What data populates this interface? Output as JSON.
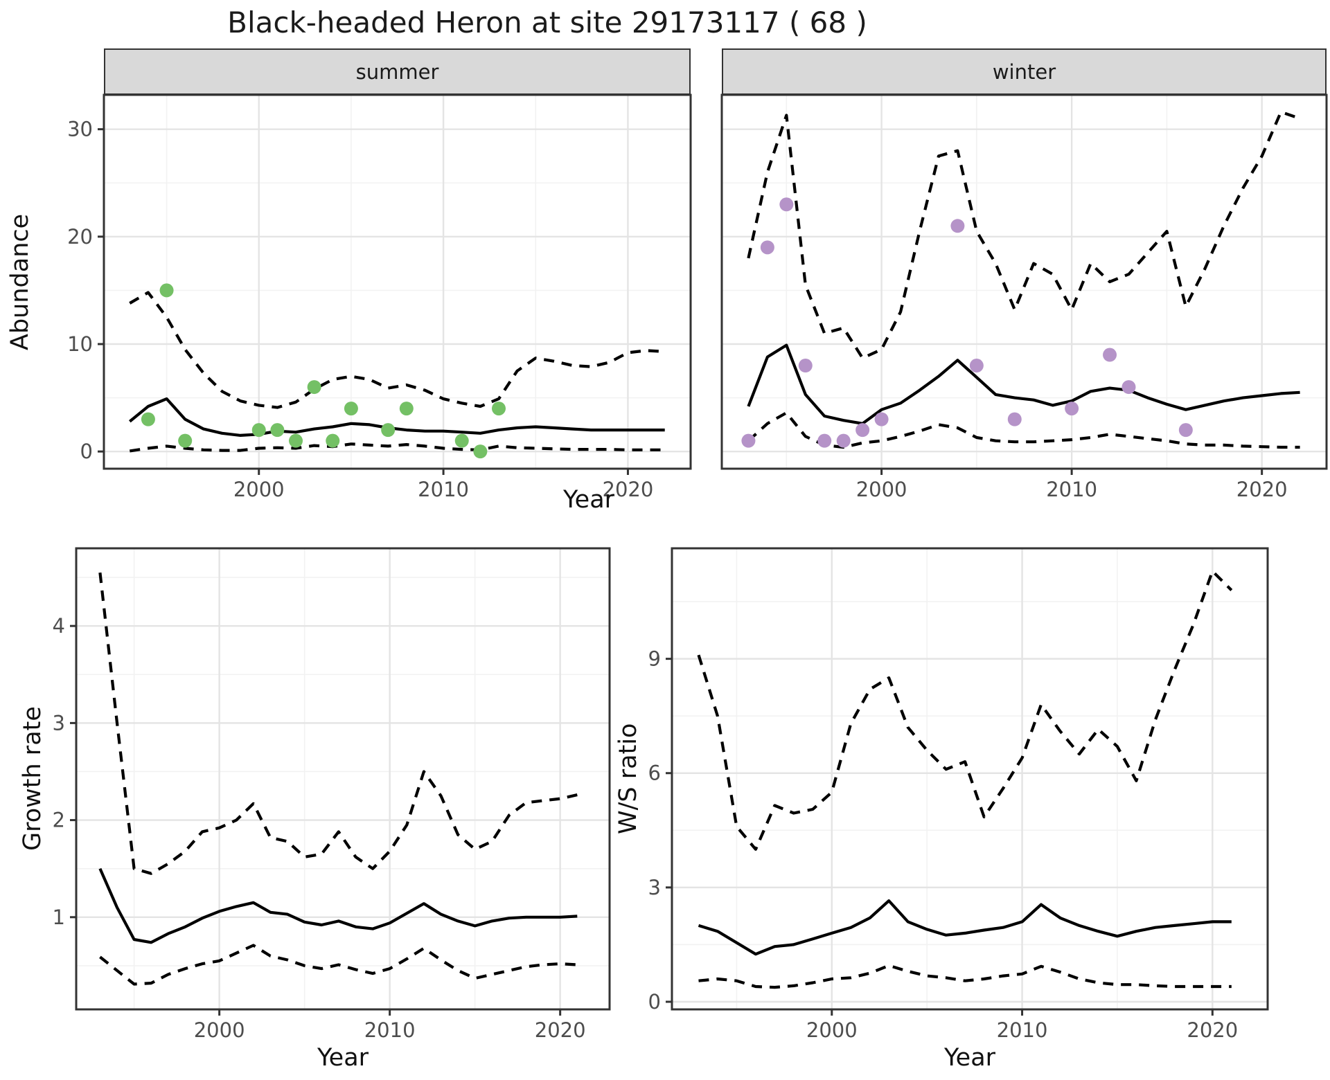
{
  "title": "Black-headed Heron at site 29173117 ( 68 )",
  "colors": {
    "summer_points": "#74c065",
    "winter_points": "#b593c8",
    "line": "#000000",
    "grid_major": "#e4e4e4",
    "grid_minor": "#f2f2f2",
    "strip_bg": "#d9d9d9",
    "panel_border": "#333333",
    "axis_text": "#4d4d4d"
  },
  "chart_data": [
    {
      "type": "line",
      "facet": "summer",
      "xlabel": "Year",
      "ylabel": "Abundance",
      "xlim": [
        1991.6,
        2023.4
      ],
      "ylim": [
        -1.6,
        33.2
      ],
      "xticks": [
        2000,
        2010,
        2020
      ],
      "xminor": [
        1995,
        2005,
        2015
      ],
      "yticks": [
        0,
        10,
        20,
        30
      ],
      "yminor": [
        5,
        15,
        25
      ],
      "grid": "on",
      "years": [
        1993,
        1994,
        1995,
        1996,
        1997,
        1998,
        1999,
        2000,
        2001,
        2002,
        2003,
        2004,
        2005,
        2006,
        2007,
        2008,
        2009,
        2010,
        2011,
        2012,
        2013,
        2014,
        2015,
        2016,
        2017,
        2018,
        2019,
        2020,
        2021,
        2022
      ],
      "series": [
        {
          "name": "median",
          "style": "solid",
          "values": [
            2.8,
            4.2,
            4.9,
            3.0,
            2.1,
            1.7,
            1.5,
            1.6,
            1.9,
            1.8,
            2.1,
            2.3,
            2.6,
            2.5,
            2.2,
            2.0,
            1.9,
            1.9,
            1.8,
            1.7,
            2.0,
            2.2,
            2.3,
            2.2,
            2.1,
            2.0,
            2.0,
            2.0,
            2.0,
            2.0
          ]
        },
        {
          "name": "upper CI",
          "style": "dashed",
          "values": [
            13.8,
            14.8,
            12.5,
            9.5,
            7.3,
            5.6,
            4.7,
            4.3,
            4.1,
            4.6,
            5.8,
            6.7,
            7.0,
            6.7,
            5.9,
            6.2,
            5.7,
            4.9,
            4.5,
            4.2,
            4.9,
            7.5,
            8.7,
            8.4,
            8.0,
            7.9,
            8.3,
            9.2,
            9.4,
            9.3
          ]
        },
        {
          "name": "lower CI",
          "style": "dashed",
          "values": [
            0.05,
            0.3,
            0.5,
            0.3,
            0.15,
            0.1,
            0.1,
            0.3,
            0.35,
            0.3,
            0.55,
            0.45,
            0.7,
            0.6,
            0.5,
            0.65,
            0.5,
            0.3,
            0.2,
            0.15,
            0.5,
            0.35,
            0.3,
            0.25,
            0.2,
            0.2,
            0.2,
            0.15,
            0.15,
            0.15
          ]
        }
      ],
      "observed_counts": [
        [
          1994,
          3
        ],
        [
          1995,
          15
        ],
        [
          1996,
          1
        ],
        [
          2000,
          2
        ],
        [
          2001,
          2
        ],
        [
          2002,
          1
        ],
        [
          2003,
          6
        ],
        [
          2004,
          1
        ],
        [
          2005,
          4
        ],
        [
          2007,
          2
        ],
        [
          2008,
          4
        ],
        [
          2011,
          1
        ],
        [
          2012,
          0
        ],
        [
          2013,
          4
        ]
      ]
    },
    {
      "type": "line",
      "facet": "winter",
      "xlabel": "Year",
      "ylabel": "Abundance",
      "xlim": [
        1991.6,
        2023.4
      ],
      "ylim": [
        -1.6,
        33.2
      ],
      "xticks": [
        2000,
        2010,
        2020
      ],
      "xminor": [
        1995,
        2005,
        2015
      ],
      "yticks": [
        0,
        10,
        20,
        30
      ],
      "yminor": [
        5,
        15,
        25
      ],
      "grid": "on",
      "years": [
        1993,
        1994,
        1995,
        1996,
        1997,
        1998,
        1999,
        2000,
        2001,
        2002,
        2003,
        2004,
        2005,
        2006,
        2007,
        2008,
        2009,
        2010,
        2011,
        2012,
        2013,
        2014,
        2015,
        2016,
        2017,
        2018,
        2019,
        2020,
        2021,
        2022
      ],
      "series": [
        {
          "name": "median",
          "style": "solid",
          "values": [
            4.2,
            8.8,
            9.9,
            5.3,
            3.3,
            2.9,
            2.6,
            3.9,
            4.5,
            5.7,
            7.0,
            8.5,
            6.9,
            5.3,
            5.0,
            4.8,
            4.3,
            4.7,
            5.6,
            5.9,
            5.7,
            5.0,
            4.4,
            3.9,
            4.3,
            4.7,
            5.0,
            5.2,
            5.4,
            5.5
          ]
        },
        {
          "name": "upper CI",
          "style": "dashed",
          "values": [
            18.0,
            26.0,
            31.3,
            15.5,
            11.0,
            11.5,
            8.7,
            9.5,
            13.0,
            20.5,
            27.5,
            28.0,
            20.5,
            17.5,
            13.2,
            17.5,
            16.5,
            13.2,
            17.5,
            15.8,
            16.5,
            18.5,
            20.5,
            13.5,
            17.0,
            21.0,
            24.5,
            27.5,
            31.6,
            31.0
          ]
        },
        {
          "name": "lower CI",
          "style": "dashed",
          "values": [
            1.0,
            2.6,
            3.6,
            1.4,
            0.6,
            0.4,
            0.8,
            1.0,
            1.4,
            1.9,
            2.5,
            2.2,
            1.3,
            1.0,
            0.9,
            0.9,
            1.0,
            1.1,
            1.3,
            1.6,
            1.4,
            1.2,
            1.0,
            0.7,
            0.6,
            0.6,
            0.5,
            0.45,
            0.4,
            0.4
          ]
        }
      ],
      "observed_counts": [
        [
          1993,
          1
        ],
        [
          1994,
          19
        ],
        [
          1995,
          23
        ],
        [
          1996,
          8
        ],
        [
          1997,
          1
        ],
        [
          1998,
          1
        ],
        [
          1999,
          2
        ],
        [
          2000,
          3
        ],
        [
          2004,
          21
        ],
        [
          2005,
          8
        ],
        [
          2007,
          3
        ],
        [
          2010,
          4
        ],
        [
          2012,
          9
        ],
        [
          2013,
          6
        ],
        [
          2016,
          2
        ]
      ]
    },
    {
      "type": "line",
      "facet": null,
      "xlabel": "Year",
      "ylabel": "Growth rate",
      "xlim": [
        1991.6,
        2022.9
      ],
      "ylim": [
        0.05,
        4.8
      ],
      "xticks": [
        2000,
        2010,
        2020
      ],
      "xminor": [
        1995,
        2005,
        2015
      ],
      "yticks": [
        1,
        2,
        3,
        4
      ],
      "yminor": [
        0.5,
        1.5,
        2.5,
        3.5,
        4.5
      ],
      "grid": "on",
      "years": [
        1993,
        1994,
        1995,
        1996,
        1997,
        1998,
        1999,
        2000,
        2001,
        2002,
        2003,
        2004,
        2005,
        2006,
        2007,
        2008,
        2009,
        2010,
        2011,
        2012,
        2013,
        2014,
        2015,
        2016,
        2017,
        2018,
        2019,
        2020,
        2021
      ],
      "series": [
        {
          "name": "median",
          "style": "solid",
          "values": [
            1.5,
            1.1,
            0.77,
            0.74,
            0.83,
            0.9,
            0.99,
            1.06,
            1.11,
            1.15,
            1.05,
            1.03,
            0.95,
            0.92,
            0.96,
            0.9,
            0.88,
            0.94,
            1.04,
            1.14,
            1.03,
            0.96,
            0.91,
            0.96,
            0.99,
            1.0,
            1.0,
            1.0,
            1.01
          ]
        },
        {
          "name": "upper CI",
          "style": "dashed",
          "values": [
            4.55,
            3.0,
            1.5,
            1.45,
            1.55,
            1.68,
            1.88,
            1.92,
            2.0,
            2.17,
            1.82,
            1.78,
            1.62,
            1.65,
            1.88,
            1.62,
            1.5,
            1.68,
            1.95,
            2.5,
            2.25,
            1.85,
            1.7,
            1.78,
            2.05,
            2.18,
            2.2,
            2.22,
            2.26
          ]
        },
        {
          "name": "lower CI",
          "style": "dashed",
          "values": [
            0.59,
            0.45,
            0.31,
            0.32,
            0.41,
            0.47,
            0.52,
            0.55,
            0.63,
            0.71,
            0.6,
            0.56,
            0.5,
            0.47,
            0.51,
            0.46,
            0.42,
            0.47,
            0.57,
            0.68,
            0.56,
            0.45,
            0.37,
            0.41,
            0.45,
            0.49,
            0.51,
            0.52,
            0.51
          ]
        }
      ],
      "observed_counts": []
    },
    {
      "type": "line",
      "facet": null,
      "xlabel": "Year",
      "ylabel": "W/S ratio",
      "xlim": [
        1991.6,
        2022.9
      ],
      "ylim": [
        -0.2,
        11.9
      ],
      "xticks": [
        2000,
        2010,
        2020
      ],
      "xminor": [
        1995,
        2005,
        2015
      ],
      "yticks": [
        0,
        3,
        6,
        9
      ],
      "yminor": [
        1.5,
        4.5,
        7.5,
        10.5
      ],
      "grid": "on",
      "years": [
        1993,
        1994,
        1995,
        1996,
        1997,
        1998,
        1999,
        2000,
        2001,
        2002,
        2003,
        2004,
        2005,
        2006,
        2007,
        2008,
        2009,
        2010,
        2011,
        2012,
        2013,
        2014,
        2015,
        2016,
        2017,
        2018,
        2019,
        2020,
        2021
      ],
      "series": [
        {
          "name": "median",
          "style": "solid",
          "values": [
            2.0,
            1.85,
            1.55,
            1.25,
            1.45,
            1.5,
            1.65,
            1.8,
            1.95,
            2.2,
            2.65,
            2.1,
            1.9,
            1.75,
            1.8,
            1.88,
            1.95,
            2.1,
            2.55,
            2.2,
            2.0,
            1.85,
            1.72,
            1.85,
            1.95,
            2.0,
            2.05,
            2.1,
            2.1
          ]
        },
        {
          "name": "upper CI",
          "style": "dashed",
          "values": [
            9.1,
            7.5,
            4.6,
            4.0,
            5.15,
            4.95,
            5.05,
            5.5,
            7.3,
            8.2,
            8.5,
            7.2,
            6.6,
            6.1,
            6.3,
            4.85,
            5.6,
            6.4,
            7.8,
            7.1,
            6.5,
            7.15,
            6.7,
            5.8,
            7.4,
            8.7,
            9.9,
            11.3,
            10.8
          ]
        },
        {
          "name": "lower CI",
          "style": "dashed",
          "values": [
            0.55,
            0.6,
            0.55,
            0.4,
            0.38,
            0.42,
            0.5,
            0.6,
            0.63,
            0.75,
            0.95,
            0.8,
            0.68,
            0.63,
            0.55,
            0.6,
            0.68,
            0.73,
            0.93,
            0.78,
            0.6,
            0.5,
            0.45,
            0.45,
            0.42,
            0.4,
            0.4,
            0.4,
            0.4
          ]
        }
      ],
      "observed_counts": []
    }
  ]
}
